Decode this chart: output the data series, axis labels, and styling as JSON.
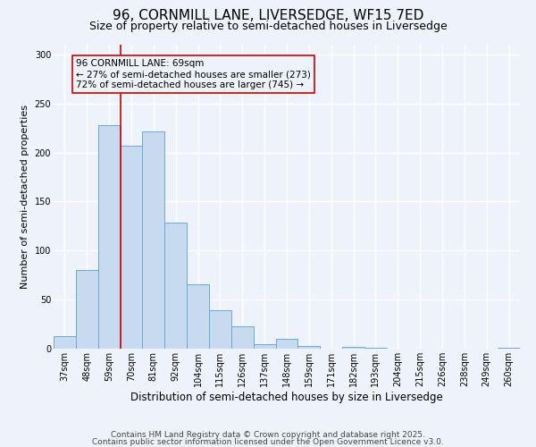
{
  "title": "96, CORNMILL LANE, LIVERSEDGE, WF15 7ED",
  "subtitle": "Size of property relative to semi-detached houses in Liversedge",
  "xlabel": "Distribution of semi-detached houses by size in Liversedge",
  "ylabel": "Number of semi-detached properties",
  "categories": [
    "37sqm",
    "48sqm",
    "59sqm",
    "70sqm",
    "81sqm",
    "92sqm",
    "104sqm",
    "115sqm",
    "126sqm",
    "137sqm",
    "148sqm",
    "159sqm",
    "171sqm",
    "182sqm",
    "193sqm",
    "204sqm",
    "215sqm",
    "226sqm",
    "238sqm",
    "249sqm",
    "260sqm"
  ],
  "values": [
    13,
    80,
    228,
    207,
    222,
    129,
    66,
    39,
    23,
    5,
    10,
    3,
    0,
    2,
    1,
    0,
    0,
    0,
    0,
    0,
    1
  ],
  "bar_color": "#c8daf0",
  "bar_edge_color": "#6aaad4",
  "vline_color": "#cc0000",
  "annotation_title": "96 CORNMILL LANE: 69sqm",
  "annotation_line1": "← 27% of semi-detached houses are smaller (273)",
  "annotation_line2": "72% of semi-detached houses are larger (745) →",
  "ylim": [
    0,
    310
  ],
  "yticks": [
    0,
    50,
    100,
    150,
    200,
    250,
    300
  ],
  "footer1": "Contains HM Land Registry data © Crown copyright and database right 2025.",
  "footer2": "Contains public sector information licensed under the Open Government Licence v3.0.",
  "background_color": "#eef2fa",
  "grid_color": "#ffffff",
  "title_fontsize": 11,
  "subtitle_fontsize": 9,
  "xlabel_fontsize": 8.5,
  "ylabel_fontsize": 8,
  "tick_fontsize": 7,
  "footer_fontsize": 6.5,
  "ann_fontsize": 7.5
}
